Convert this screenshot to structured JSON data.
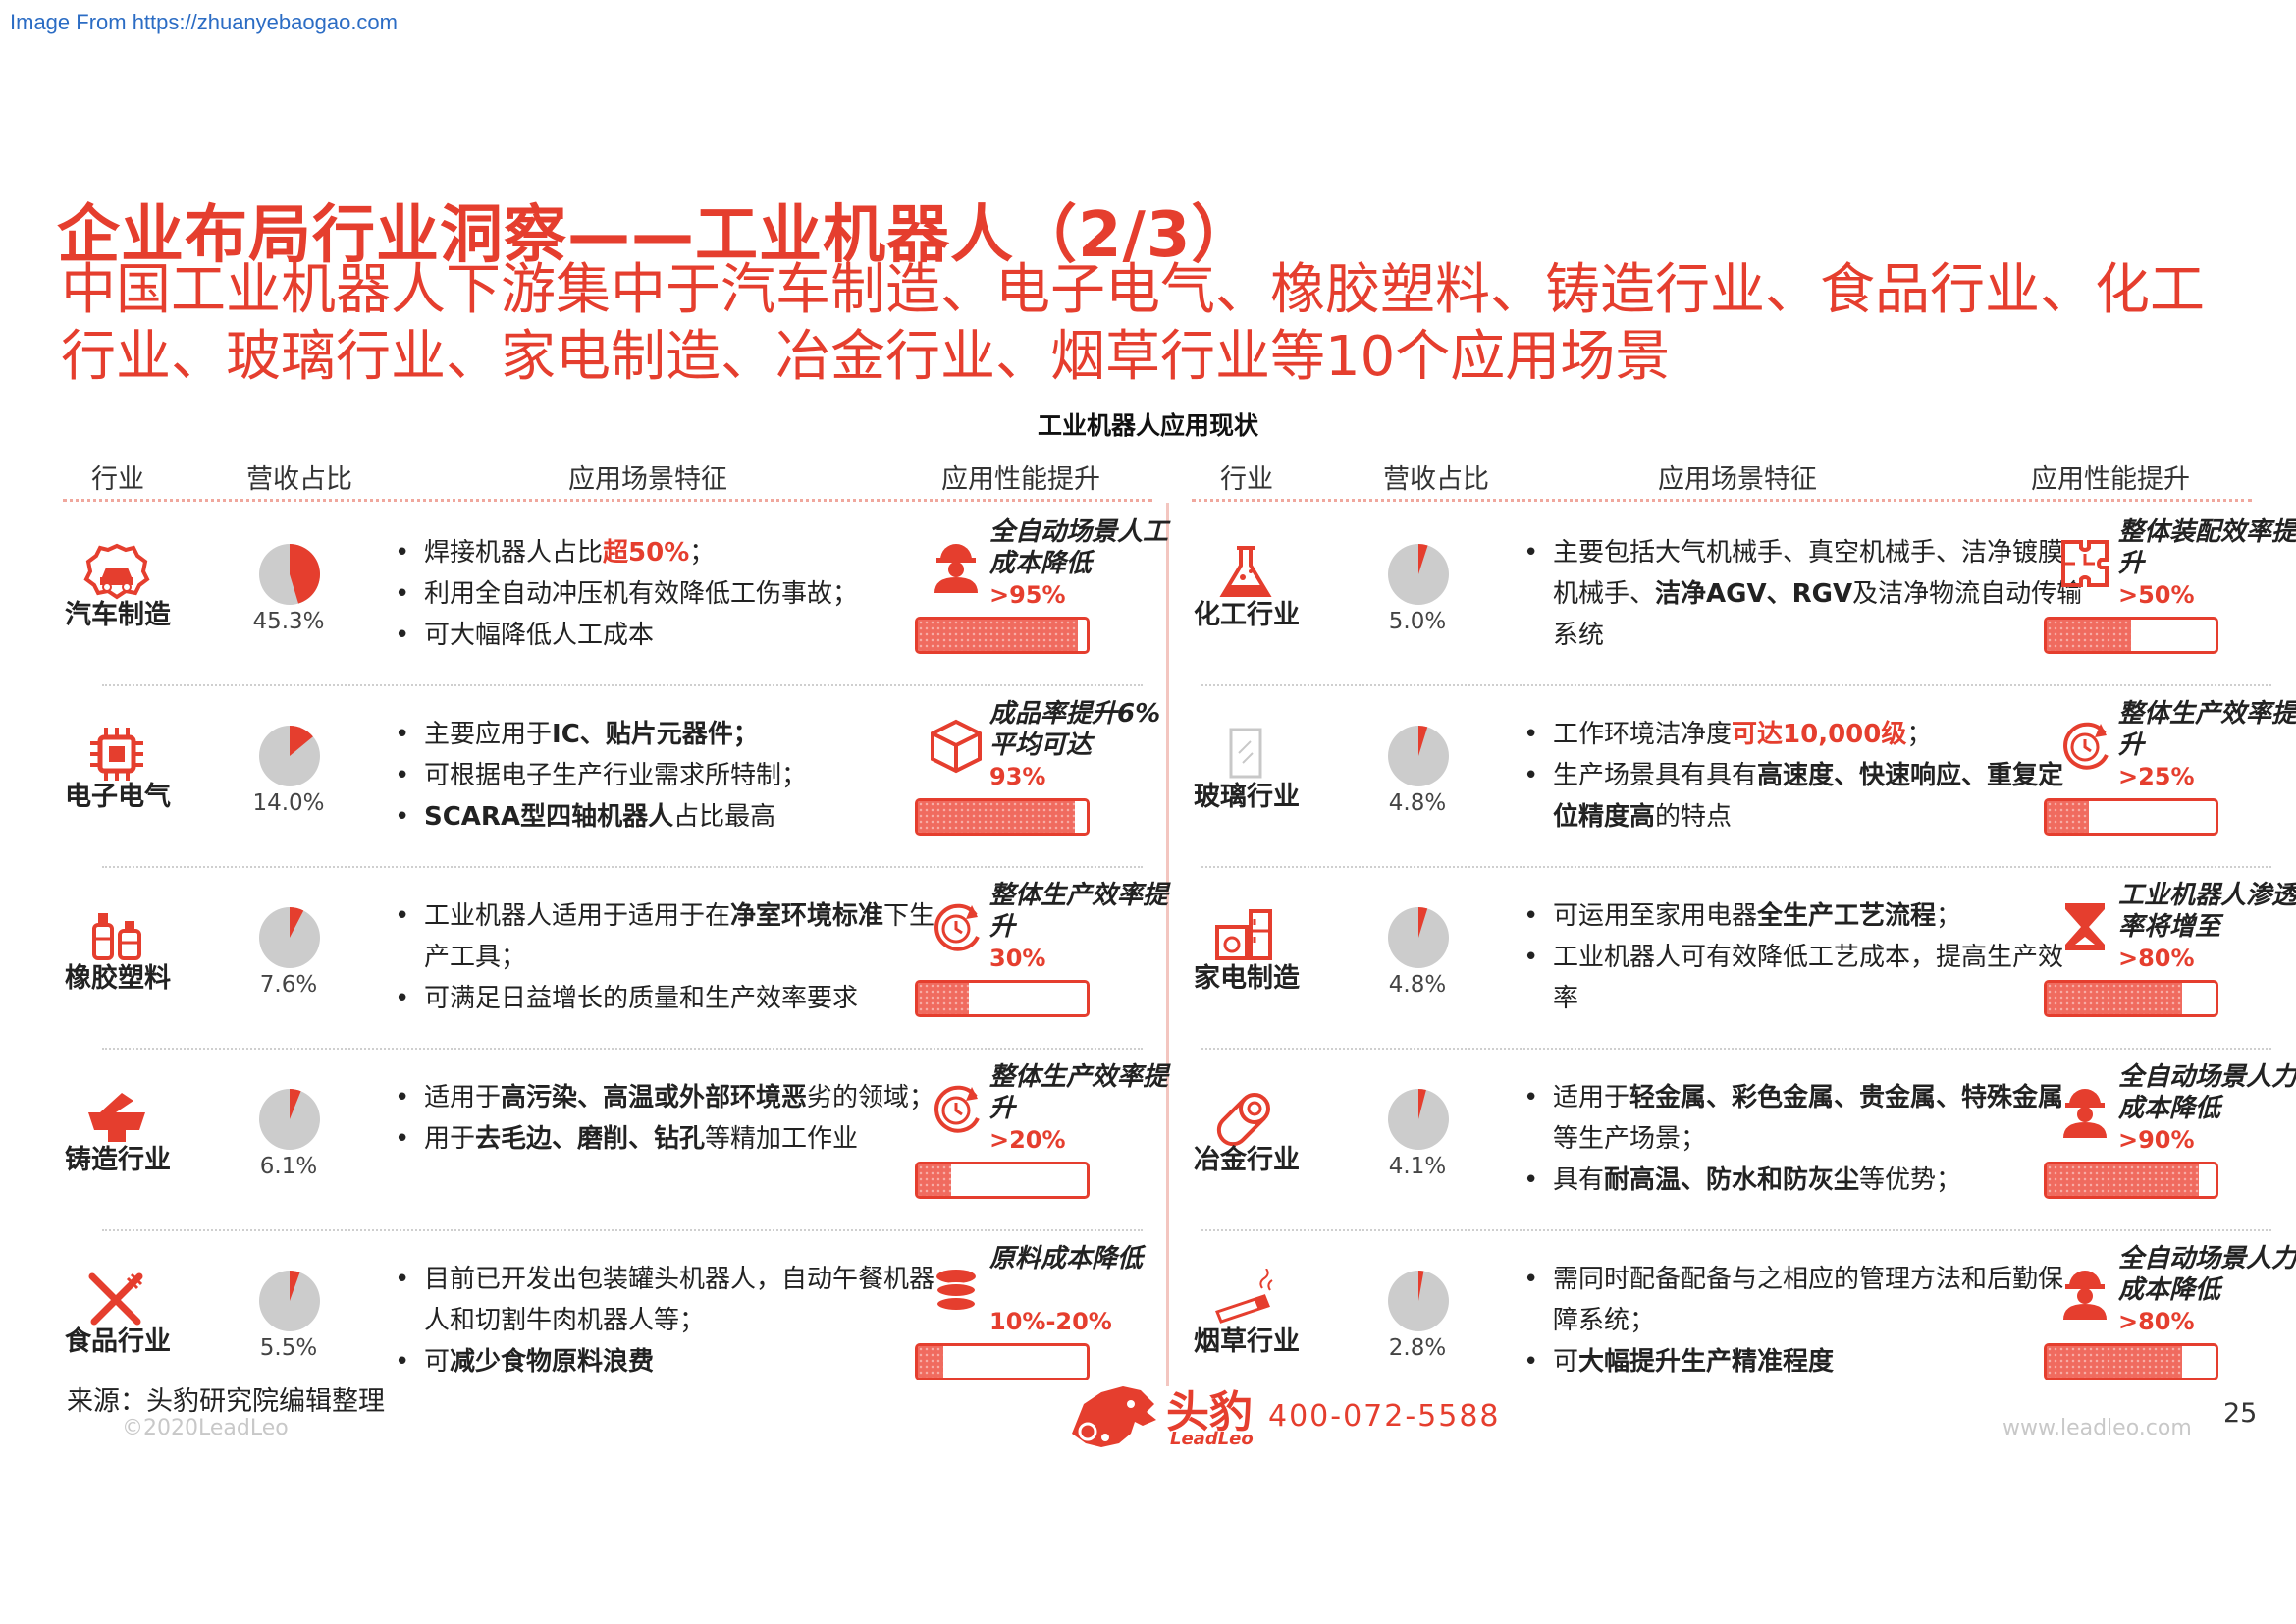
{
  "source_link": "Image From https://zhuanyebaogao.com",
  "title": "企业布局行业洞察——工业机器人（2/3）",
  "subtitle": "中国工业机器人下游集中于汽车制造、电子电气、橡胶塑料、铸造行业、食品行业、化工行业、玻璃行业、家电制造、冶金行业、烟草行业等10个应用场景",
  "table_title": "工业机器人应用现状",
  "headers": {
    "industry": "行业",
    "revenue_share": "营收占比",
    "features": "应用场景特征",
    "performance": "应用性能提升"
  },
  "left_rows": [
    {
      "name": "汽车制造",
      "icon": "car-gear-icon",
      "share": 45.3,
      "share_label": "45.3%",
      "bullets": [
        [
          {
            "t": "焊接机器人占比"
          },
          {
            "t": "超50%",
            "s": "red"
          },
          {
            "t": "；"
          }
        ],
        [
          {
            "t": "利用全自动冲压机有效降低工伤事故；"
          }
        ],
        [
          {
            "t": "可大幅降低人工成本"
          }
        ]
      ],
      "perf_icon": "worker-icon",
      "perf_label": "全自动场景人工成本降低",
      "perf_value": ">95%",
      "perf_level": 0.95
    },
    {
      "name": "电子电气",
      "icon": "chip-icon",
      "share": 14.0,
      "share_label": "14.0%",
      "bullets": [
        [
          {
            "t": "主要应用于"
          },
          {
            "t": "IC、贴片元器件；",
            "s": "b"
          }
        ],
        [
          {
            "t": "可根据电子生产行业需求所特制；"
          }
        ],
        [
          {
            "t": "SCARA型四轴机器人",
            "s": "b"
          },
          {
            "t": "占比最高"
          }
        ]
      ],
      "perf_icon": "box-icon",
      "perf_label": "成品率提升6%平均可达",
      "perf_value": "93%",
      "perf_level": 0.93
    },
    {
      "name": "橡胶塑料",
      "icon": "bottles-icon",
      "share": 7.6,
      "share_label": "7.6%",
      "bullets": [
        [
          {
            "t": "工业机器人适用于适用于在"
          },
          {
            "t": "净室环境标准",
            "s": "b"
          },
          {
            "t": "下生产工具；"
          }
        ],
        [
          {
            "t": "可满足日益增长的质量和生产效率要求"
          }
        ]
      ],
      "perf_icon": "clock-refresh-icon",
      "perf_label": "整体生产效率提升",
      "perf_value": "30%",
      "perf_level": 0.3
    },
    {
      "name": "铸造行业",
      "icon": "casting-icon",
      "share": 6.1,
      "share_label": "6.1%",
      "bullets": [
        [
          {
            "t": "适用于"
          },
          {
            "t": "高污染、高温或外部环境恶",
            "s": "b"
          },
          {
            "t": "劣的领域；"
          }
        ],
        [
          {
            "t": "用于"
          },
          {
            "t": "去毛边、磨削、钻孔",
            "s": "b"
          },
          {
            "t": "等精加工作业"
          }
        ]
      ],
      "perf_icon": "clock-refresh-icon",
      "perf_label": "整体生产效率提升",
      "perf_value": ">20%",
      "perf_level": 0.2
    },
    {
      "name": "食品行业",
      "icon": "fork-knife-icon",
      "share": 5.5,
      "share_label": "5.5%",
      "bullets": [
        [
          {
            "t": "目前已开发出包装罐头机器人，自动午餐机器人和切割牛肉机器人等；"
          }
        ],
        [
          {
            "t": "可"
          },
          {
            "t": "减少食物原料浪费",
            "s": "b"
          }
        ]
      ],
      "perf_icon": "coins-icon",
      "perf_label": "原料成本降低",
      "perf_value": "10%-20%",
      "perf_level": 0.15
    }
  ],
  "right_rows": [
    {
      "name": "化工行业",
      "icon": "flask-icon",
      "share": 5.0,
      "share_label": "5.0%",
      "bullets": [
        [
          {
            "t": "主要包括大气机械手、真空机械手、洁净镀膜机械手、"
          },
          {
            "t": "洁净AGV、RGV",
            "s": "b"
          },
          {
            "t": "及洁净物流自动传输系统"
          }
        ]
      ],
      "perf_icon": "puzzle-icon",
      "perf_label": "整体装配效率提升",
      "perf_value": ">50%",
      "perf_level": 0.5
    },
    {
      "name": "玻璃行业",
      "icon": "glass-pane-icon",
      "share": 4.8,
      "share_label": "4.8%",
      "bullets": [
        [
          {
            "t": "工作环境洁净度"
          },
          {
            "t": "可达10,000级",
            "s": "red"
          },
          {
            "t": "；"
          }
        ],
        [
          {
            "t": "生产场景具有具有"
          },
          {
            "t": "高速度、快速响应、重复定位精度高",
            "s": "b"
          },
          {
            "t": "的特点"
          }
        ]
      ],
      "perf_icon": "clock-refresh-icon",
      "perf_label": "整体生产效率提升",
      "perf_value": ">25%",
      "perf_level": 0.25
    },
    {
      "name": "家电制造",
      "icon": "appliance-icon",
      "share": 4.8,
      "share_label": "4.8%",
      "bullets": [
        [
          {
            "t": "可运用至家用电器"
          },
          {
            "t": "全生产工艺流程",
            "s": "b"
          },
          {
            "t": "；"
          }
        ],
        [
          {
            "t": "工业机器人可有效降低工艺成本，提高生产效率"
          }
        ]
      ],
      "perf_icon": "hourglass-icon",
      "perf_label": "工业机器人渗透率将增至",
      "perf_value": ">80%",
      "perf_level": 0.8
    },
    {
      "name": "冶金行业",
      "icon": "metal-roll-icon",
      "share": 4.1,
      "share_label": "4.1%",
      "bullets": [
        [
          {
            "t": "适用于"
          },
          {
            "t": "轻金属、彩色金属、贵金属、特殊金属",
            "s": "b"
          },
          {
            "t": "等生产场景；"
          }
        ],
        [
          {
            "t": "具有"
          },
          {
            "t": "耐高温、防水和防灰尘",
            "s": "b"
          },
          {
            "t": "等优势；"
          }
        ]
      ],
      "perf_icon": "worker-icon",
      "perf_label": "全自动场景人力成本降低",
      "perf_value": ">90%",
      "perf_level": 0.9
    },
    {
      "name": "烟草行业",
      "icon": "cigarette-icon",
      "share": 2.8,
      "share_label": "2.8%",
      "bullets": [
        [
          {
            "t": "需同时配备配备与之相应的管理方法和后勤保障系统；"
          }
        ],
        [
          {
            "t": "可"
          },
          {
            "t": "大幅提升生产精准程度",
            "s": "b"
          }
        ]
      ],
      "perf_icon": "worker-icon",
      "perf_label": "全自动场景人力成本降低",
      "perf_value": ">80%",
      "perf_level": 0.8
    }
  ],
  "footer": {
    "source": "来源：头豹研究院编辑整理",
    "copyright": "©2020LeadLeo",
    "brand_name": "头豹",
    "brand_sub": "LeadLeo",
    "phone": "400-072-5588",
    "website": "www.leadleo.com",
    "page_number": "25"
  },
  "colors": {
    "accent": "#e53e2e",
    "pie_gray": "#cccccc",
    "bar_fill": "#f06b5f"
  }
}
